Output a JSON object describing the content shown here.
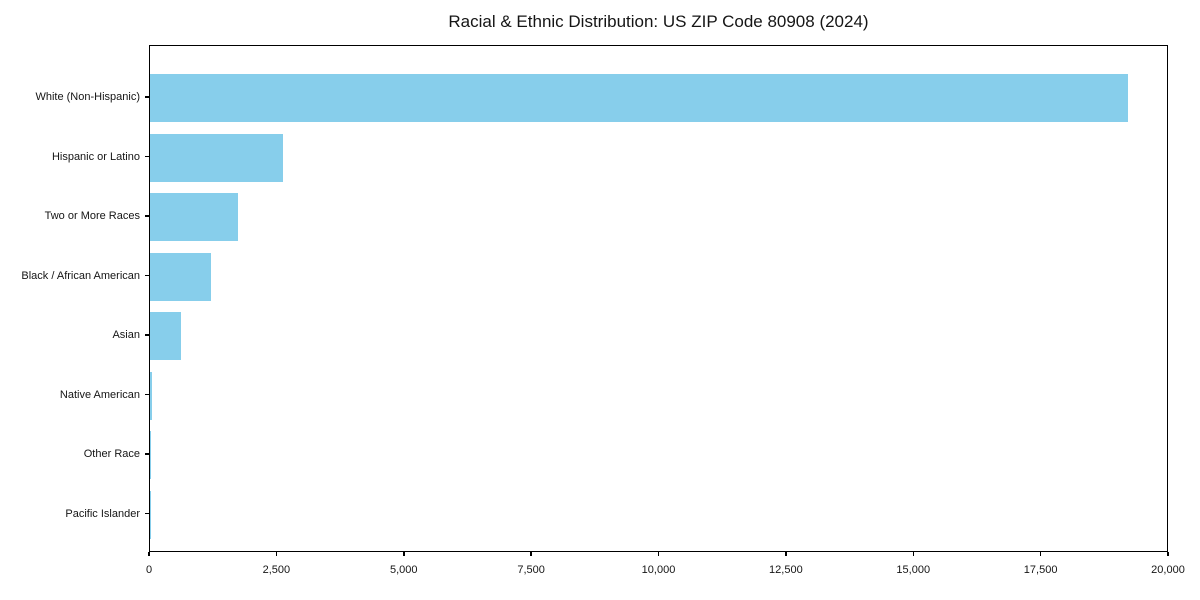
{
  "figure": {
    "background": "#ffffff",
    "text_color": "#151515",
    "axis_color": "#000000"
  },
  "chart_data": {
    "type": "bar",
    "orientation": "horizontal",
    "title": "Racial & Ethnic Distribution: US ZIP Code 80908 (2024)",
    "categories": [
      "White (Non-Hispanic)",
      "Hispanic or Latino",
      "Two or More Races",
      "Black / African American",
      "Asian",
      "Native American",
      "Other Race",
      "Pacific Islander"
    ],
    "values": [
      19230,
      2610,
      1730,
      1200,
      610,
      40,
      20,
      10
    ],
    "bar_color": "#87CEEB",
    "xlabel": "",
    "ylabel": "",
    "xlim": [
      0,
      20000
    ],
    "x_ticks": [
      0,
      2500,
      5000,
      7500,
      10000,
      12500,
      15000,
      17500,
      20000
    ],
    "x_tick_labels": [
      "0",
      "2,500",
      "5,000",
      "7,500",
      "10,000",
      "12,500",
      "15,000",
      "17,500",
      "20,000"
    ],
    "grid": false,
    "legend": null,
    "plot_border": true
  }
}
